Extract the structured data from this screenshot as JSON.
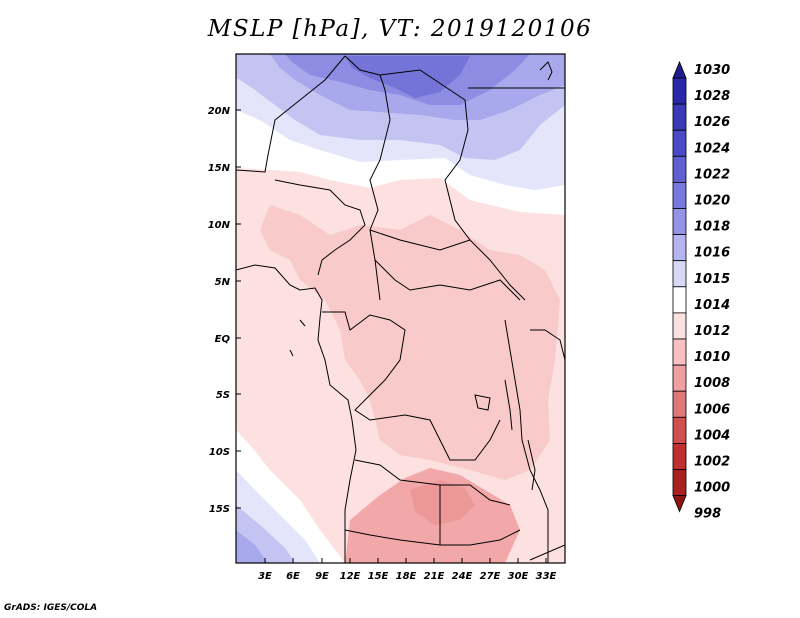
{
  "title": "MSLP [hPa], VT: 2019120106",
  "credit": "GrADS: IGES/COLA",
  "lat_labels": [
    "20N",
    "15N",
    "10N",
    "5N",
    "EQ",
    "5S",
    "10S",
    "15S"
  ],
  "lon_labels": [
    "3E",
    "6E",
    "9E",
    "12E",
    "15E",
    "18E",
    "21E",
    "24E",
    "27E",
    "30E",
    "33E"
  ],
  "colorbar": {
    "labels": [
      "1030",
      "1028",
      "1026",
      "1024",
      "1022",
      "1020",
      "1018",
      "1016",
      "1015",
      "1014",
      "1012",
      "1010",
      "1008",
      "1006",
      "1004",
      "1002",
      "1000",
      "998"
    ],
    "colors": [
      "#1e1e8c",
      "#2828a8",
      "#3a3ab8",
      "#4a4ac6",
      "#6060d2",
      "#7878de",
      "#9494e6",
      "#b4b4f0",
      "#d8d8f8",
      "#ffffff",
      "#fde0e0",
      "#f8c0c0",
      "#f0a0a0",
      "#e07878",
      "#d05050",
      "#c03030",
      "#a82020",
      "#8c1414"
    ]
  },
  "colors": {
    "high": "#8888e0",
    "mid_blue": "#c8c8f4",
    "neutral": "#ffffff",
    "pale_red": "#fde0e0",
    "low": "#f5b4b4",
    "lowest": "#f0a0a0"
  }
}
